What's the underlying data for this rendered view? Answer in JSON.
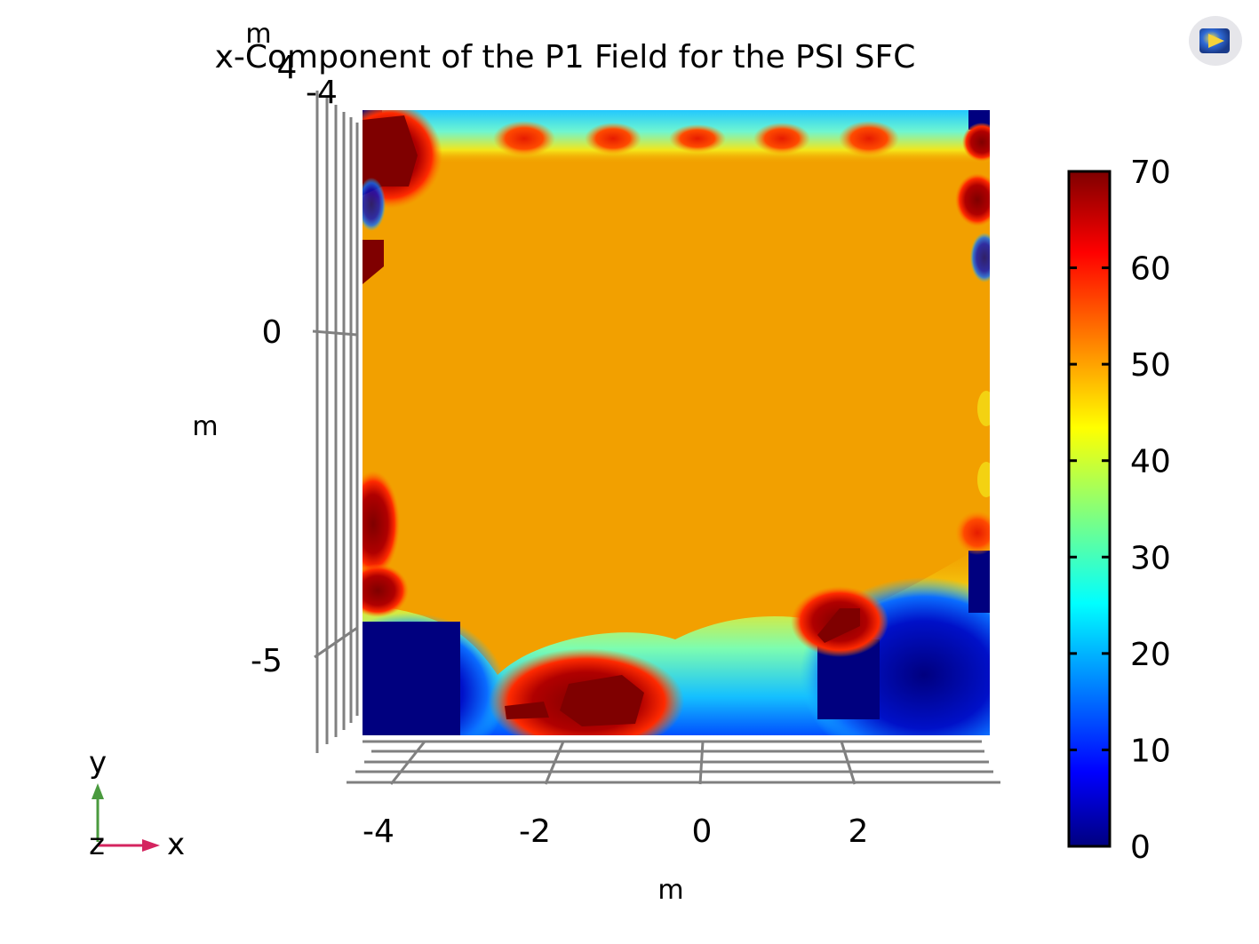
{
  "chart_data": {
    "type": "heatmap",
    "title": "x-Component of the P1 Field for the PSI SFC",
    "xlabel": "m",
    "ylabel": "m",
    "x_ticks": [
      "-4",
      "-2",
      "0",
      "2"
    ],
    "y_ticks": [
      "-4",
      "0",
      "-5"
    ],
    "z_tick_top": "4",
    "z_unit_label": "m",
    "colorbar": {
      "min": 0,
      "max": 70,
      "ticks": [
        "70",
        "60",
        "50",
        "40",
        "30",
        "20",
        "10",
        "0"
      ],
      "colormap": "jet"
    },
    "field_summary": {
      "interior_value": 52,
      "hot_spots": [
        {
          "where": "top-left corner",
          "value": 70
        },
        {
          "where": "bottom center",
          "value": 70
        },
        {
          "where": "lower right",
          "value": 68
        },
        {
          "where": "top edge row",
          "value": 62
        }
      ],
      "cold_regions": [
        {
          "where": "bottom-left corner",
          "value": 2
        },
        {
          "where": "bottom-right corner",
          "value": 5
        },
        {
          "where": "top edge",
          "value": 25
        }
      ]
    },
    "grid": false
  },
  "axis_triad": {
    "y_label": "y",
    "x_label": "x",
    "z_label": "z",
    "y_color": "#4a9a3e",
    "x_color": "#d4245f"
  },
  "logo": {
    "icon": "app-logo-icon"
  }
}
